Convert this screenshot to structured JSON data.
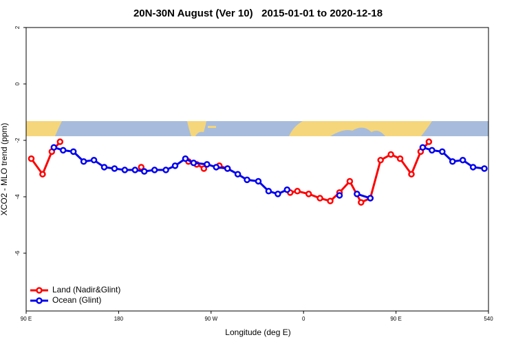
{
  "chart_data": {
    "type": "line",
    "title": "20N-30N August (Ver 10)   2015-01-01 to 2020-12-18",
    "x_label": "Longitude (deg E)",
    "y_label": "XCO2 - MLO trend (ppm)",
    "xlim": [
      90,
      540
    ],
    "ylim": [
      -8,
      2
    ],
    "xticks": [
      {
        "value": 90,
        "label": "90 E"
      },
      180,
      {
        "value": 270,
        "label": "90 W"
      },
      {
        "value": 360,
        "label": "0"
      },
      {
        "value": 450,
        "label": "90 E"
      },
      540
    ],
    "yticks": [
      2,
      0,
      -2,
      -4,
      -6
    ],
    "legend": "bottom-left",
    "series": [
      {
        "name": "Land (Nadir&Glint)",
        "color": "#ff0000",
        "x": [
          95,
          106,
          115,
          123,
          160,
          202,
          230,
          248,
          256,
          263,
          270,
          278,
          286,
          320,
          347,
          354,
          365,
          376,
          386,
          395,
          405,
          416,
          425,
          435,
          445,
          454,
          465,
          474,
          482
        ],
        "values": [
          -2.65,
          -3.2,
          -2.4,
          -2.05,
          null,
          -2.95,
          null,
          -2.75,
          -2.85,
          -3.0,
          null,
          -2.9,
          -3.0,
          null,
          -3.85,
          -3.8,
          -3.9,
          -4.05,
          -4.15,
          -3.85,
          -3.45,
          -4.2,
          -4.05,
          -2.7,
          -2.5,
          -2.65,
          -3.2,
          -2.4,
          -2.05
        ]
      },
      {
        "name": "Ocean (Glint)",
        "color": "#0000ee",
        "x": [
          117,
          126,
          136,
          146,
          156,
          166,
          176,
          186,
          196,
          205,
          215,
          226,
          235,
          245,
          253,
          266,
          275,
          286,
          296,
          305,
          316,
          326,
          335,
          344,
          370,
          395,
          405,
          412,
          425,
          450,
          476,
          485,
          495,
          505,
          515,
          525,
          536
        ],
        "values": [
          -2.25,
          -2.35,
          -2.4,
          -2.75,
          -2.7,
          -2.95,
          -3.0,
          -3.05,
          -3.05,
          -3.1,
          -3.05,
          -3.05,
          -2.9,
          -2.65,
          -2.8,
          -2.85,
          -2.95,
          -3.0,
          -3.2,
          -3.4,
          -3.45,
          -3.8,
          -3.9,
          -3.75,
          null,
          -3.95,
          null,
          -3.9,
          -4.05,
          null,
          -2.25,
          -2.35,
          -2.4,
          -2.75,
          -2.7,
          -2.95,
          -3.0
        ]
      }
    ]
  }
}
